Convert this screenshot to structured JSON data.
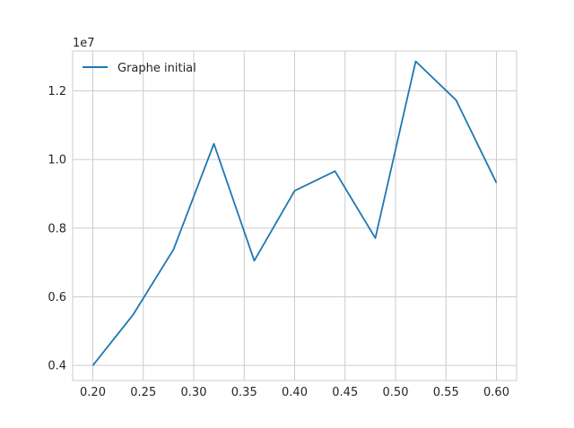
{
  "chart_data": {
    "type": "line",
    "title": "",
    "xlabel": "",
    "ylabel": "",
    "y_offset_text": "1e7",
    "xlim": [
      0.18,
      0.62
    ],
    "ylim": [
      3560000,
      13160000
    ],
    "x_ticks": [
      0.2,
      0.25,
      0.3,
      0.35,
      0.4,
      0.45,
      0.5,
      0.55,
      0.6
    ],
    "x_tick_labels": [
      "0.20",
      "0.25",
      "0.30",
      "0.35",
      "0.40",
      "0.45",
      "0.50",
      "0.55",
      "0.60"
    ],
    "y_ticks": [
      4000000,
      6000000,
      8000000,
      10000000,
      12000000
    ],
    "y_tick_labels": [
      "0.4",
      "0.6",
      "0.8",
      "1.0",
      "1.2"
    ],
    "grid": true,
    "legend_position": "top-left",
    "series": [
      {
        "name": "Graphe initial",
        "color": "#1f77b4",
        "x": [
          0.2,
          0.24,
          0.28,
          0.32,
          0.36,
          0.4,
          0.44,
          0.48,
          0.52,
          0.56,
          0.6
        ],
        "y": [
          4000000,
          5480000,
          7380000,
          10460000,
          7050000,
          9090000,
          9660000,
          7710000,
          12860000,
          11730000,
          9320000
        ]
      }
    ]
  }
}
